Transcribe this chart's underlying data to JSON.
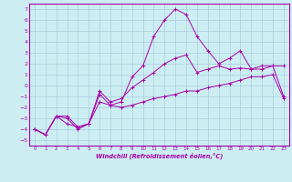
{
  "xlabel": "Windchill (Refroidissement éolien,°C)",
  "bg_color": "#cceef2",
  "grid_color": "#aaccdd",
  "line_color": "#aa00aa",
  "spine_color": "#aa00aa",
  "xlim": [
    -0.5,
    23.5
  ],
  "ylim": [
    -5.5,
    7.5
  ],
  "xticks": [
    0,
    1,
    2,
    3,
    4,
    5,
    6,
    7,
    8,
    9,
    10,
    11,
    12,
    13,
    14,
    15,
    16,
    17,
    18,
    19,
    20,
    21,
    22,
    23
  ],
  "yticks": [
    -5,
    -4,
    -3,
    -2,
    -1,
    0,
    1,
    2,
    3,
    4,
    5,
    6,
    7
  ],
  "line1_x": [
    0,
    1,
    2,
    3,
    4,
    5,
    6,
    7,
    8,
    9,
    10,
    11,
    12,
    13,
    14,
    15,
    16,
    17,
    18,
    19,
    20,
    21,
    22,
    23
  ],
  "line1_y": [
    -4.0,
    -4.5,
    -2.8,
    -3.0,
    -4.0,
    -3.5,
    -0.8,
    -1.8,
    -1.5,
    0.8,
    1.8,
    4.5,
    6.0,
    7.0,
    6.5,
    4.5,
    3.2,
    2.0,
    2.5,
    3.2,
    1.5,
    1.8,
    1.8,
    -1.0
  ],
  "line2_x": [
    0,
    1,
    2,
    3,
    4,
    5,
    6,
    7,
    8,
    9,
    10,
    11,
    12,
    13,
    14,
    15,
    16,
    17,
    18,
    19,
    20,
    21,
    22,
    23
  ],
  "line2_y": [
    -4.0,
    -4.5,
    -2.8,
    -3.5,
    -3.8,
    -3.5,
    -0.5,
    -1.5,
    -1.2,
    -0.2,
    0.5,
    1.2,
    2.0,
    2.5,
    2.8,
    1.2,
    1.5,
    1.8,
    1.5,
    1.6,
    1.5,
    1.5,
    1.8,
    1.8
  ],
  "line3_x": [
    0,
    1,
    2,
    3,
    4,
    5,
    6,
    7,
    8,
    9,
    10,
    11,
    12,
    13,
    14,
    15,
    16,
    17,
    18,
    19,
    20,
    21,
    22,
    23
  ],
  "line3_y": [
    -4.0,
    -4.5,
    -2.8,
    -2.8,
    -3.8,
    -3.5,
    -1.5,
    -1.8,
    -2.0,
    -1.8,
    -1.5,
    -1.2,
    -1.0,
    -0.8,
    -0.5,
    -0.5,
    -0.2,
    0.0,
    0.2,
    0.5,
    0.8,
    0.8,
    1.0,
    -1.2
  ]
}
